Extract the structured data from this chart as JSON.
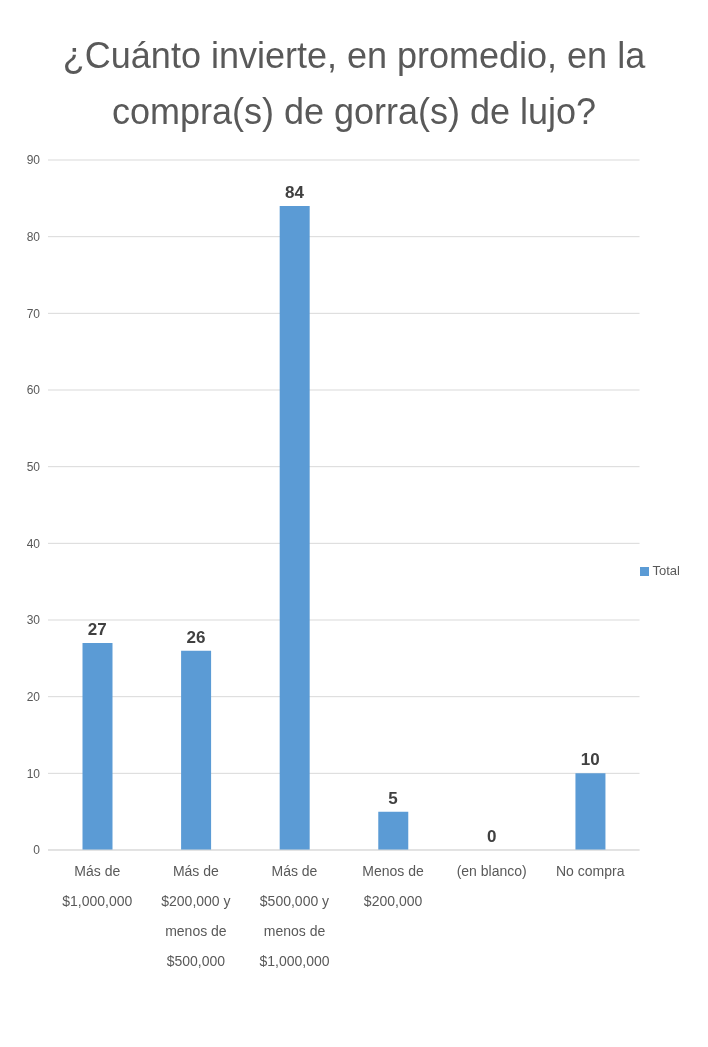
{
  "chart_data": {
    "type": "bar",
    "title": "¿Cuánto invierte, en promedio, en la compra(s) de gorra(s) de lujo?",
    "categories": [
      "Más de $1,000,000",
      "Más de $200,000 y menos de $500,000",
      "Más de $500,000 y menos de $1,000,000",
      "Menos de $200,000",
      "(en blanco)",
      "No compra"
    ],
    "series": [
      {
        "name": "Total",
        "color": "#5b9bd5",
        "values": [
          27,
          26,
          84,
          5,
          0,
          10
        ]
      }
    ],
    "ylim": [
      0,
      90
    ],
    "yticks": [
      0,
      10,
      20,
      30,
      40,
      50,
      60,
      70,
      80,
      90
    ],
    "grid": "y",
    "legend": "right",
    "data_labels": true
  }
}
